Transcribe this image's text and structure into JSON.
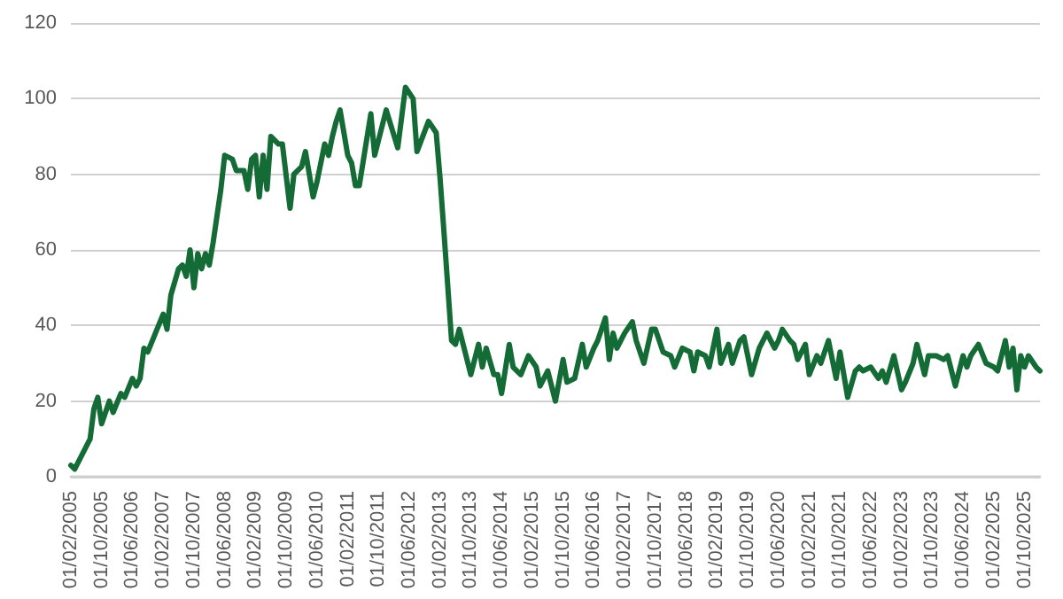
{
  "chart_data": {
    "type": "line",
    "x": [
      "2005-02",
      "2005-03",
      "2005-05",
      "2005-07",
      "2005-08",
      "2005-09",
      "2005-10",
      "2005-12",
      "2006-01",
      "2006-03",
      "2006-04",
      "2006-06",
      "2006-07",
      "2006-08",
      "2006-09",
      "2006-10",
      "2006-12",
      "2007-02",
      "2007-03",
      "2007-04",
      "2007-06",
      "2007-07",
      "2007-08",
      "2007-09",
      "2007-10",
      "2007-11",
      "2007-12",
      "2008-01",
      "2008-02",
      "2008-03",
      "2008-05",
      "2008-06",
      "2008-08",
      "2008-09",
      "2008-11",
      "2008-12",
      "2009-01",
      "2009-02",
      "2009-03",
      "2009-04",
      "2009-05",
      "2009-06",
      "2009-08",
      "2009-09",
      "2009-11",
      "2009-12",
      "2010-02",
      "2010-03",
      "2010-05",
      "2010-06",
      "2010-08",
      "2010-09",
      "2010-10",
      "2010-11",
      "2010-12",
      "2011-02",
      "2011-03",
      "2011-04",
      "2011-05",
      "2011-08",
      "2011-09",
      "2011-12",
      "2012-03",
      "2012-05",
      "2012-07",
      "2012-08",
      "2012-11",
      "2013-01",
      "2013-02",
      "2013-03",
      "2013-05",
      "2013-06",
      "2013-07",
      "2013-10",
      "2013-12",
      "2014-01",
      "2014-02",
      "2014-04",
      "2014-05",
      "2014-06",
      "2014-08",
      "2014-09",
      "2014-11",
      "2015-01",
      "2015-03",
      "2015-04",
      "2015-06",
      "2015-08",
      "2015-10",
      "2015-11",
      "2016-01",
      "2016-03",
      "2016-04",
      "2016-06",
      "2016-07",
      "2016-09",
      "2016-10",
      "2016-11",
      "2016-12",
      "2017-02",
      "2017-04",
      "2017-05",
      "2017-07",
      "2017-09",
      "2017-10",
      "2017-12",
      "2018-02",
      "2018-03",
      "2018-05",
      "2018-07",
      "2018-08",
      "2018-09",
      "2018-11",
      "2018-12",
      "2019-02",
      "2019-03",
      "2019-05",
      "2019-06",
      "2019-08",
      "2019-09",
      "2019-10",
      "2019-11",
      "2020-01",
      "2020-03",
      "2020-05",
      "2020-06",
      "2020-07",
      "2020-09",
      "2020-10",
      "2020-11",
      "2021-01",
      "2021-02",
      "2021-04",
      "2021-05",
      "2021-07",
      "2021-09",
      "2021-10",
      "2021-12",
      "2022-02",
      "2022-03",
      "2022-04",
      "2022-06",
      "2022-08",
      "2022-09",
      "2022-10",
      "2022-12",
      "2023-02",
      "2023-03",
      "2023-05",
      "2023-06",
      "2023-08",
      "2023-09",
      "2023-11",
      "2024-01",
      "2024-02",
      "2024-04",
      "2024-06",
      "2024-07",
      "2024-08",
      "2024-10",
      "2024-12",
      "2025-02",
      "2025-03",
      "2025-05",
      "2025-06",
      "2025-07",
      "2025-08",
      "2025-09",
      "2025-10",
      "2025-11",
      "2026-01",
      "2026-02"
    ],
    "series": [
      {
        "color": "#146b36",
        "values": [
          3,
          2,
          6,
          10,
          18,
          21,
          14,
          20,
          17,
          22,
          21,
          26,
          24,
          26,
          34,
          33,
          38,
          43,
          39,
          48,
          55,
          56,
          53,
          60,
          50,
          59,
          55,
          59,
          56,
          62,
          76,
          85,
          84,
          81,
          81,
          76,
          84,
          85,
          74,
          85,
          76,
          90,
          88,
          88,
          71,
          80,
          82,
          86,
          74,
          78,
          88,
          85,
          90,
          94,
          97,
          85,
          83,
          77,
          77,
          96,
          85,
          97,
          87,
          103,
          100,
          86,
          94,
          91,
          79,
          65,
          36,
          35,
          39,
          27,
          35,
          29,
          34,
          27,
          27,
          22,
          35,
          29,
          27,
          32,
          29,
          24,
          28,
          20,
          31,
          25,
          26,
          35,
          29,
          34,
          36,
          42,
          31,
          38,
          34,
          38,
          41,
          36,
          30,
          39,
          39,
          33,
          32,
          29,
          34,
          33,
          28,
          33,
          32,
          29,
          39,
          30,
          35,
          30,
          36,
          37,
          32,
          27,
          34,
          38,
          34,
          36,
          39,
          36,
          35,
          31,
          35,
          27,
          32,
          30,
          36,
          26,
          33,
          21,
          28,
          29,
          28,
          29,
          26,
          28,
          25,
          32,
          23,
          25,
          30,
          35,
          27,
          32,
          32,
          31,
          32,
          24,
          32,
          29,
          32,
          35,
          30,
          29,
          28,
          36,
          29,
          34,
          23,
          32,
          29,
          32,
          29,
          28
        ]
      }
    ],
    "xlim": [
      "2005-02",
      "2026-02"
    ],
    "xticks": [
      {
        "value": "2005-02",
        "label": "01/02/2005"
      },
      {
        "value": "2005-10",
        "label": "01/10/2005"
      },
      {
        "value": "2006-06",
        "label": "01/06/2006"
      },
      {
        "value": "2007-02",
        "label": "01/02/2007"
      },
      {
        "value": "2007-10",
        "label": "01/10/2007"
      },
      {
        "value": "2008-06",
        "label": "01/06/2008"
      },
      {
        "value": "2009-02",
        "label": "01/02/2009"
      },
      {
        "value": "2009-10",
        "label": "01/10/2009"
      },
      {
        "value": "2010-06",
        "label": "01/06/2010"
      },
      {
        "value": "2011-02",
        "label": "01/02/2011"
      },
      {
        "value": "2011-10",
        "label": "01/10/2011"
      },
      {
        "value": "2012-06",
        "label": "01/06/2012"
      },
      {
        "value": "2013-02",
        "label": "01/02/2013"
      },
      {
        "value": "2013-10",
        "label": "01/10/2013"
      },
      {
        "value": "2014-06",
        "label": "01/06/2014"
      },
      {
        "value": "2015-02",
        "label": "01/02/2015"
      },
      {
        "value": "2015-10",
        "label": "01/10/2015"
      },
      {
        "value": "2016-06",
        "label": "01/06/2016"
      },
      {
        "value": "2017-02",
        "label": "01/02/2017"
      },
      {
        "value": "2017-10",
        "label": "01/10/2017"
      },
      {
        "value": "2018-06",
        "label": "01/06/2018"
      },
      {
        "value": "2019-02",
        "label": "01/02/2019"
      },
      {
        "value": "2019-10",
        "label": "01/10/2019"
      },
      {
        "value": "2020-06",
        "label": "01/06/2020"
      },
      {
        "value": "2021-02",
        "label": "01/02/2021"
      },
      {
        "value": "2021-10",
        "label": "01/10/2021"
      },
      {
        "value": "2022-06",
        "label": "01/06/2022"
      },
      {
        "value": "2023-02",
        "label": "01/02/2023"
      },
      {
        "value": "2023-10",
        "label": "01/10/2023"
      },
      {
        "value": "2024-06",
        "label": "01/06/2024"
      },
      {
        "value": "2025-02",
        "label": "01/02/2025"
      },
      {
        "value": "2025-10",
        "label": "01/10/2025"
      }
    ],
    "ylim": [
      0,
      120
    ],
    "yticks": [
      0,
      20,
      40,
      60,
      80,
      100,
      120
    ],
    "grid": "y",
    "marker": "none",
    "line_style": "solid"
  }
}
